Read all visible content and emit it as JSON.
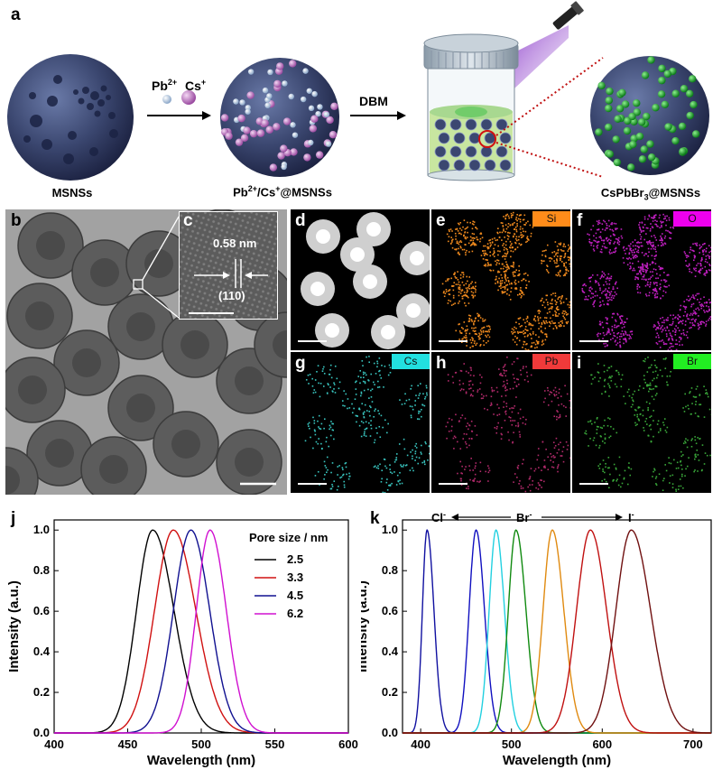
{
  "panel_a": {
    "label": "a",
    "msnss_caption": "MSNSs",
    "ion_pb": "Pb",
    "ion_pb_sup": "2+",
    "ion_cs": "Cs",
    "ion_cs_sup": "+",
    "loaded_caption_pre": "Pb",
    "loaded_caption_sup1": "2+",
    "loaded_caption_mid": "/Cs",
    "loaded_caption_sup2": "+",
    "loaded_caption_post": "@MSNSs",
    "dbm_label": "DBM",
    "product_caption_pre": "CsPbBr",
    "product_caption_sub": "3",
    "product_caption_post": "@MSNSs"
  },
  "panel_b": {
    "label": "b"
  },
  "panel_c": {
    "label": "c",
    "spacing": "0.58 nm",
    "plane": "(110)"
  },
  "eds": [
    {
      "label": "d",
      "element": "",
      "tag_color": "",
      "dot_color": "#e8e8e8"
    },
    {
      "label": "e",
      "element": "Si",
      "tag_color": "#ff8c1a",
      "dot_color": "#f08a1e"
    },
    {
      "label": "f",
      "element": "O",
      "tag_color": "#ee00ee",
      "dot_color": "#c020c0"
    },
    {
      "label": "g",
      "element": "Cs",
      "tag_color": "#22e0e0",
      "dot_color": "#39c6c0"
    },
    {
      "label": "h",
      "element": "Pb",
      "tag_color": "#f03a3a",
      "dot_color": "#b02a6a"
    },
    {
      "label": "i",
      "element": "Br",
      "tag_color": "#22ee22",
      "dot_color": "#3aa83a"
    }
  ],
  "chart_data": [
    {
      "panel": "j",
      "type": "line",
      "xlabel": "Wavelength (nm)",
      "ylabel": "Intensity (a.u.)",
      "xlim": [
        400,
        600
      ],
      "ylim": [
        0,
        1.05
      ],
      "xticks": [
        400,
        450,
        500,
        550,
        600
      ],
      "yticks": [
        0.0,
        0.2,
        0.4,
        0.6,
        0.8,
        1.0
      ],
      "legend_title": "Pore size / nm",
      "legend_position": "top-right",
      "series": [
        {
          "name": "2.5",
          "color": "#000000",
          "peak": 467,
          "fwhm_left": 13,
          "fwhm_right": 17
        },
        {
          "name": "3.3",
          "color": "#d01010",
          "peak": 481,
          "fwhm_left": 15,
          "fwhm_right": 18
        },
        {
          "name": "4.5",
          "color": "#101090",
          "peak": 493,
          "fwhm_left": 14,
          "fwhm_right": 15
        },
        {
          "name": "6.2",
          "color": "#d010d0",
          "peak": 506,
          "fwhm_left": 11,
          "fwhm_right": 13
        }
      ]
    },
    {
      "panel": "k",
      "type": "line",
      "xlabel": "Wavelength (nm)",
      "ylabel": "Intensity (a.u.)",
      "xlim": [
        380,
        720
      ],
      "ylim": [
        0,
        1.05
      ],
      "xticks": [
        400,
        500,
        600,
        700
      ],
      "yticks": [
        0.0,
        0.2,
        0.4,
        0.6,
        0.8,
        1.0
      ],
      "annotation_left": "Cl",
      "annotation_mid": "Br",
      "annotation_right": "I",
      "annotation_sup": "-",
      "series": [
        {
          "color": "#1010a0",
          "peak": 407,
          "fwhm_left": 6,
          "fwhm_right": 9
        },
        {
          "color": "#1010c0",
          "peak": 461,
          "fwhm_left": 9,
          "fwhm_right": 11
        },
        {
          "color": "#22d0e0",
          "peak": 483,
          "fwhm_left": 9,
          "fwhm_right": 11
        },
        {
          "color": "#108a10",
          "peak": 505,
          "fwhm_left": 10,
          "fwhm_right": 13
        },
        {
          "color": "#e08a10",
          "peak": 545,
          "fwhm_left": 12,
          "fwhm_right": 15
        },
        {
          "color": "#c01010",
          "peak": 587,
          "fwhm_left": 18,
          "fwhm_right": 21
        },
        {
          "color": "#701010",
          "peak": 632,
          "fwhm_left": 20,
          "fwhm_right": 25
        }
      ]
    }
  ]
}
